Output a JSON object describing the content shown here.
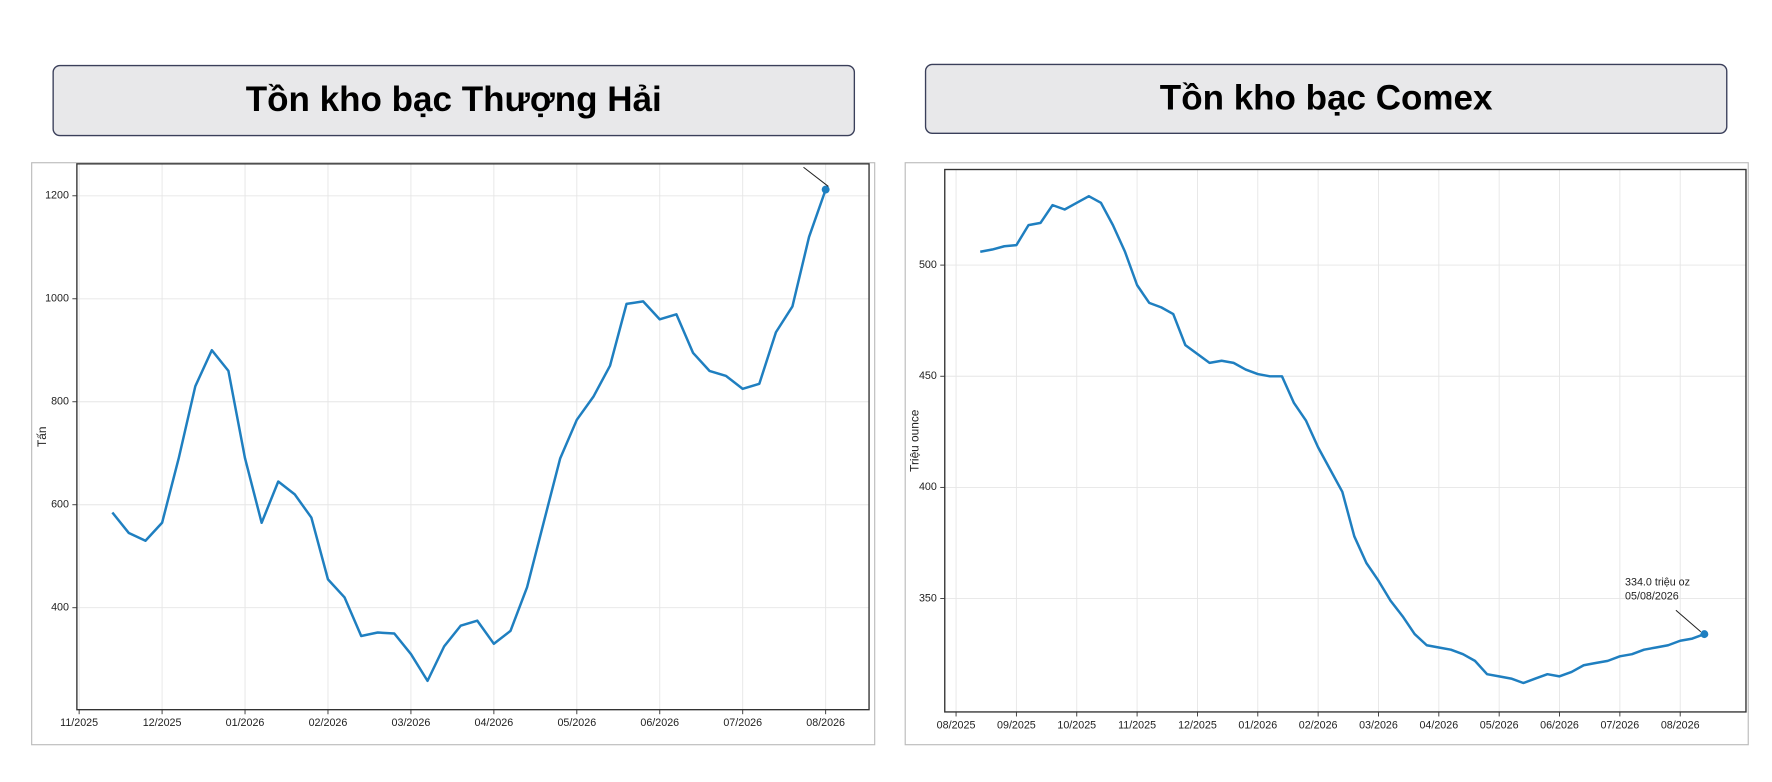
{
  "chart_data": [
    {
      "type": "line",
      "title": "Tồn kho bạc Thượng Hải",
      "ylabel": "Tấn",
      "color": "#1f7fc0",
      "grid": true,
      "ylim": [
        202,
        1262
      ],
      "yticks": [
        400,
        600,
        800,
        1000,
        1200
      ],
      "categories": [
        "11/2025",
        null,
        null,
        null,
        null,
        "12/2025",
        null,
        null,
        null,
        null,
        "01/2026",
        null,
        null,
        null,
        null,
        "02/2026",
        null,
        null,
        null,
        null,
        "03/2026",
        null,
        null,
        null,
        null,
        "04/2026",
        null,
        null,
        null,
        null,
        "05/2026",
        null,
        null,
        null,
        null,
        "06/2026",
        null,
        null,
        null,
        null,
        "07/2026",
        null,
        null,
        null,
        null,
        "08/2026"
      ],
      "values": [
        null,
        null,
        585,
        545,
        530,
        565,
        690,
        830,
        900,
        860,
        690,
        565,
        645,
        620,
        575,
        455,
        420,
        345,
        352,
        350,
        310,
        258,
        325,
        365,
        375,
        330,
        355,
        440,
        565,
        690,
        765,
        810,
        870,
        990,
        995,
        960,
        970,
        895,
        860,
        850,
        825,
        835,
        935,
        985,
        1120,
        1212
      ]
    },
    {
      "type": "line",
      "title": "Tồn kho bạc Comex",
      "ylabel": "Triệu ounce",
      "color": "#1f7fc0",
      "grid": true,
      "ylim": [
        299,
        543
      ],
      "yticks": [
        350,
        400,
        450,
        500
      ],
      "annotation": [
        "334.0 triệu oz",
        "05/08/2026"
      ],
      "categories": [
        "08/2025",
        null,
        null,
        null,
        null,
        "09/2025",
        null,
        null,
        null,
        null,
        "10/2025",
        null,
        null,
        null,
        null,
        "11/2025",
        null,
        null,
        null,
        null,
        "12/2025",
        null,
        null,
        null,
        null,
        "01/2026",
        null,
        null,
        null,
        null,
        "02/2026",
        null,
        null,
        null,
        null,
        "03/2026",
        null,
        null,
        null,
        null,
        "04/2026",
        null,
        null,
        null,
        null,
        "05/2026",
        null,
        null,
        null,
        null,
        "06/2026",
        null,
        null,
        null,
        null,
        "07/2026",
        null,
        null,
        null,
        null,
        "08/2026",
        null,
        null
      ],
      "values": [
        null,
        null,
        506,
        507,
        508.5,
        509,
        518,
        519,
        527,
        525,
        528,
        531,
        528,
        518,
        506,
        491,
        483,
        481,
        478,
        464,
        460,
        456,
        457,
        456,
        453,
        451,
        450,
        450,
        438,
        430,
        418,
        408,
        398,
        378,
        366,
        358,
        349,
        342,
        334,
        329,
        328,
        327,
        325,
        322,
        316,
        315,
        314,
        312,
        314,
        316,
        315,
        317,
        320,
        321,
        322,
        324,
        325,
        327,
        328,
        329,
        331,
        332,
        334.0
      ]
    }
  ]
}
